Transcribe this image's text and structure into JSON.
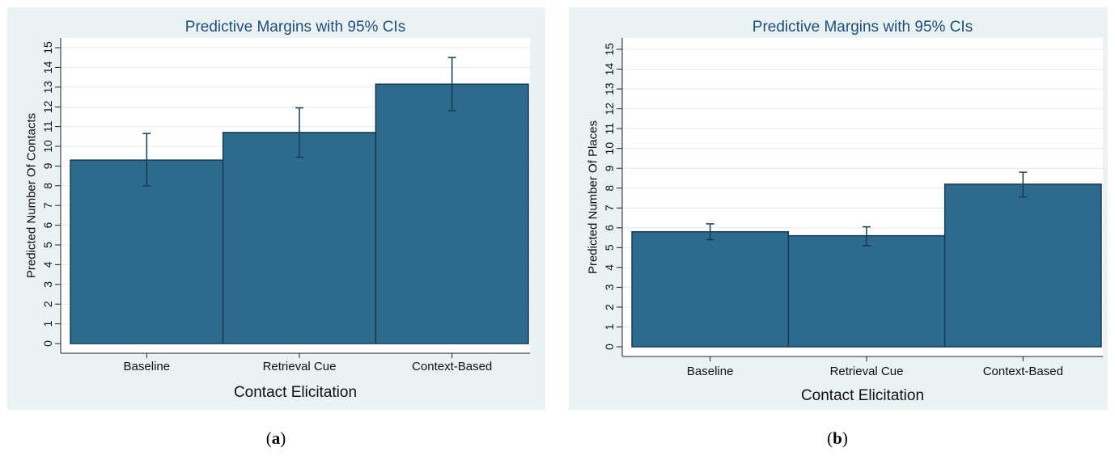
{
  "chart_data": [
    {
      "type": "bar",
      "title": "Predictive Margins with 95% CIs",
      "xlabel": "Contact Elicitation",
      "ylabel": "Predicted Number Of Contacts",
      "categories": [
        "Baseline",
        "Retrieval Cue",
        "Context-Based"
      ],
      "values": [
        9.3,
        10.7,
        13.15
      ],
      "ci_low": [
        8.0,
        9.45,
        11.8
      ],
      "ci_high": [
        10.65,
        11.95,
        14.5
      ],
      "ylim": [
        0,
        15
      ],
      "yticks": [
        "0",
        "1",
        "2",
        "3",
        "4",
        "5",
        "6",
        "7",
        "8",
        "9",
        "10",
        "11",
        "12",
        "13",
        "14",
        "15"
      ],
      "grid": true,
      "bar_color": "#2d6a8e"
    },
    {
      "type": "bar",
      "title": "Predictive Margins with 95% CIs",
      "xlabel": "Contact Elicitation",
      "ylabel": "Predicted Number Of Places",
      "categories": [
        "Baseline",
        "Retrieval Cue",
        "Context-Based"
      ],
      "values": [
        5.8,
        5.6,
        8.2
      ],
      "ci_low": [
        5.4,
        5.1,
        7.55
      ],
      "ci_high": [
        6.2,
        6.05,
        8.8
      ],
      "ylim": [
        0,
        15
      ],
      "yticks": [
        "0",
        "1",
        "2",
        "3",
        "4",
        "5",
        "6",
        "7",
        "8",
        "9",
        "10",
        "11",
        "12",
        "13",
        "14",
        "15"
      ],
      "grid": true,
      "bar_color": "#2d6a8e"
    }
  ],
  "captions": {
    "a_open": "(",
    "a_letter": "a",
    "a_close": ")",
    "b_open": "(",
    "b_letter": "b",
    "b_close": ")"
  }
}
